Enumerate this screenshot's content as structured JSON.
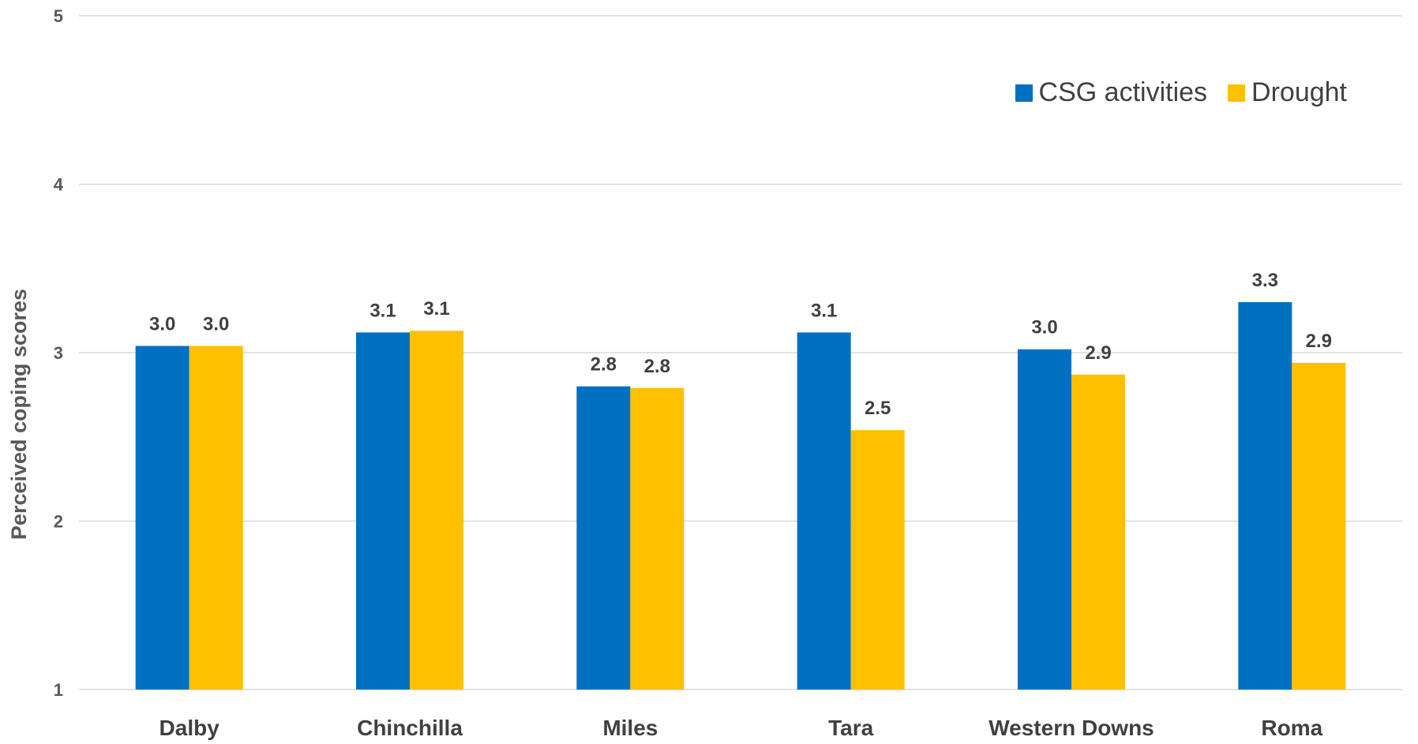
{
  "chart_data": {
    "type": "bar",
    "title": "",
    "xlabel": "",
    "ylabel": "Perceived coping scores",
    "ylim": [
      1,
      5
    ],
    "yticks": [
      1,
      2,
      3,
      4,
      5
    ],
    "grid": true,
    "legend_position": "top-right",
    "categories": [
      "Dalby",
      "Chinchilla",
      "Miles",
      "Tara",
      "Western Downs",
      "Roma"
    ],
    "series": [
      {
        "name": "CSG activities",
        "color": "#0070C0",
        "values": [
          3.04,
          3.12,
          2.8,
          3.12,
          3.02,
          3.3
        ],
        "labels": [
          "3.0",
          "3.1",
          "2.8",
          "3.1",
          "3.0",
          "3.3"
        ]
      },
      {
        "name": "Drought",
        "color": "#FFC000",
        "values": [
          3.04,
          3.13,
          2.79,
          2.54,
          2.87,
          2.94
        ],
        "labels": [
          "3.0",
          "3.1",
          "2.8",
          "2.5",
          "2.9",
          "2.9"
        ]
      }
    ]
  }
}
